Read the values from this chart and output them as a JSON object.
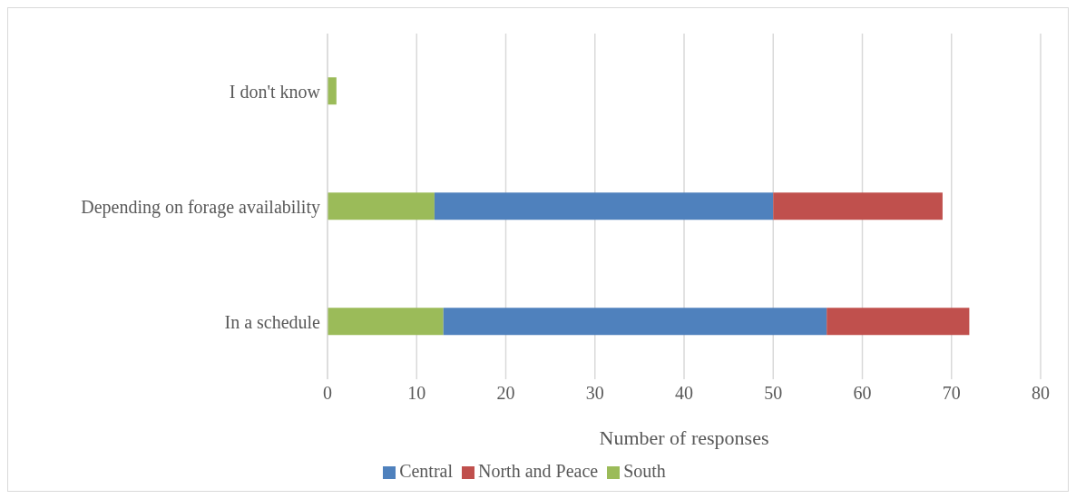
{
  "chart_data": {
    "type": "bar",
    "orientation": "horizontal",
    "stacked": true,
    "xlabel": "Number of responses",
    "categories": [
      "I don't know",
      "Depending on forage availability",
      "In a schedule"
    ],
    "series": [
      {
        "name": "South",
        "color": "#9bbb59",
        "values": [
          1,
          12,
          13
        ]
      },
      {
        "name": "Central",
        "color": "#4f81bd",
        "values": [
          null,
          38,
          43
        ]
      },
      {
        "name": "North and Peace",
        "color": "#c0504d",
        "values": [
          null,
          19,
          16
        ]
      }
    ],
    "xlim": [
      0,
      80
    ],
    "xticks": [
      0,
      10,
      20,
      30,
      40,
      50,
      60,
      70,
      80
    ],
    "grid": "x",
    "legend": "bottom"
  }
}
